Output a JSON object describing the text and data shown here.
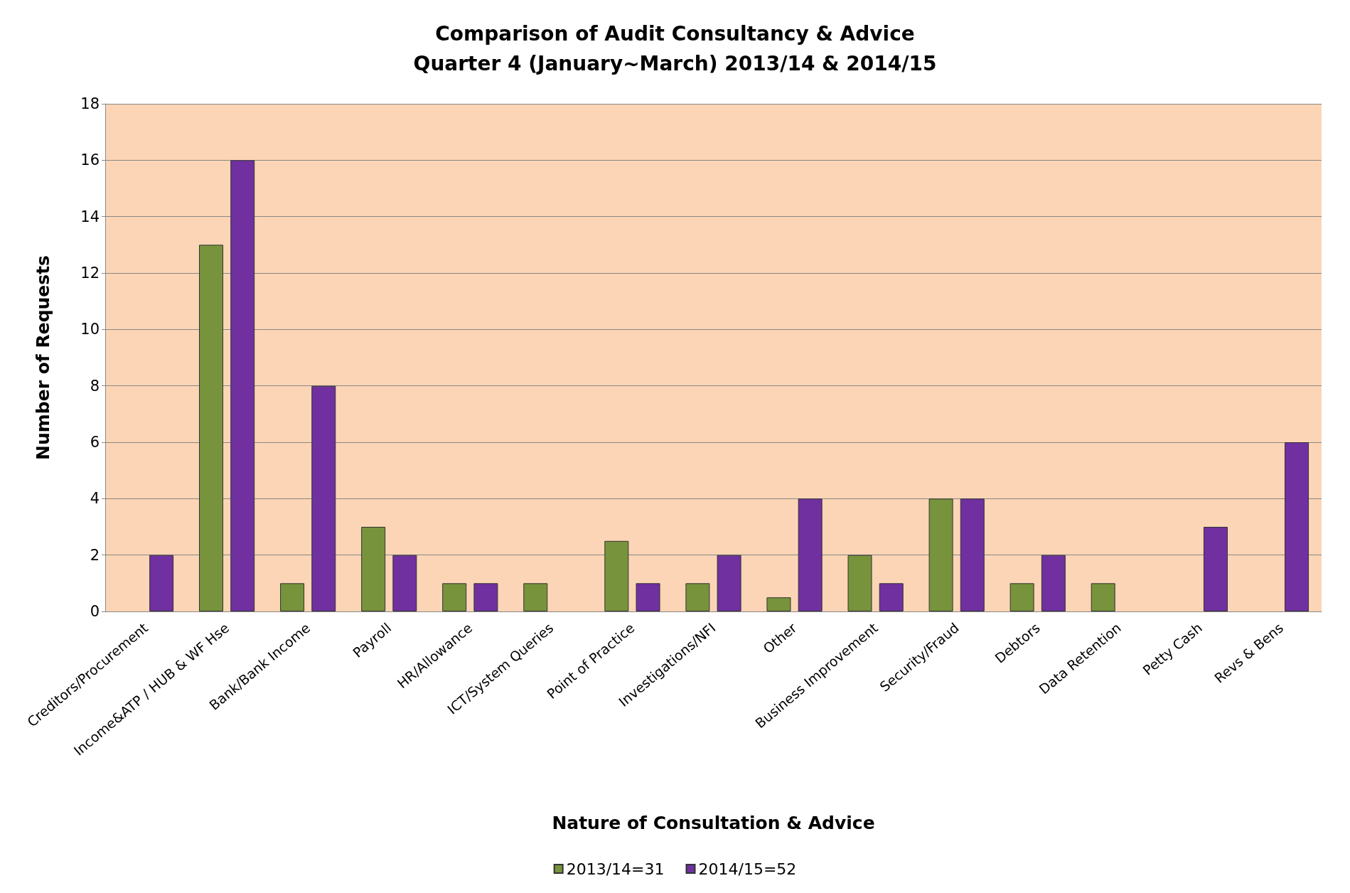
{
  "chart_data": {
    "type": "bar",
    "title": "Comparison of Audit Consultancy & Advice",
    "subtitle": "Quarter 4 (January~March) 2013/14 & 2014/15",
    "xlabel": "Nature of Consultation & Advice",
    "ylabel": "Number of Requests",
    "categories": [
      "Creditors/Procurement",
      "Income&ATP / HUB & WF Hse",
      "Bank/Bank Income",
      "Payroll",
      "HR/Allowance",
      "ICT/System Queries",
      "Point of Practice",
      "Investigations/NFI",
      "Other",
      "Business Improvement",
      "Security/Fraud",
      "Debtors",
      "Data Retention",
      "Petty Cash",
      "Revs & Bens"
    ],
    "series": [
      {
        "name": "2013/14=31",
        "color": "#77933c",
        "values": [
          null,
          13,
          1,
          3,
          1,
          1,
          2.5,
          1,
          0.5,
          2,
          4,
          1,
          1,
          null,
          null
        ]
      },
      {
        "name": "2014/15=52",
        "color": "#7030a0",
        "values": [
          2,
          16,
          8,
          2,
          1,
          null,
          1,
          2,
          4,
          1,
          4,
          2,
          null,
          3,
          6
        ]
      }
    ],
    "ylim": [
      0,
      18
    ],
    "yticks": [
      0,
      2,
      4,
      6,
      8,
      10,
      12,
      14,
      16,
      18
    ],
    "grid": "y",
    "legend": "bottom"
  }
}
